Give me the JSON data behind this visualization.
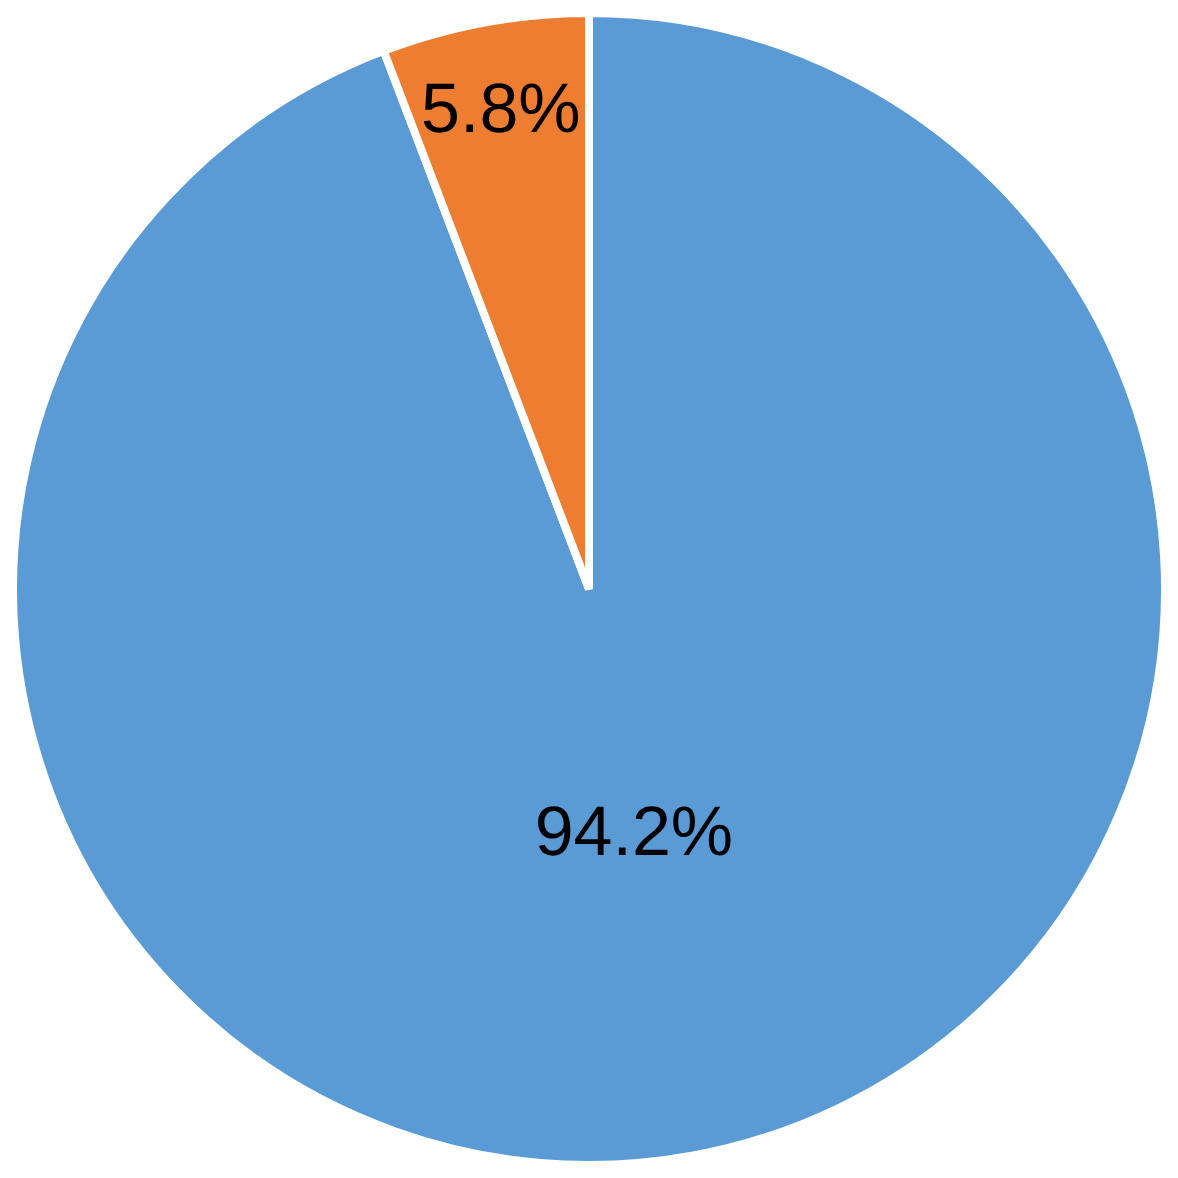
{
  "chart_data": {
    "type": "pie",
    "categories": [
      null,
      null
    ],
    "values": [
      94.2,
      5.8
    ],
    "colors": [
      "#5b9bd5",
      "#ed7d31"
    ],
    "value_labels": [
      "94.2%",
      "5.8%"
    ]
  }
}
